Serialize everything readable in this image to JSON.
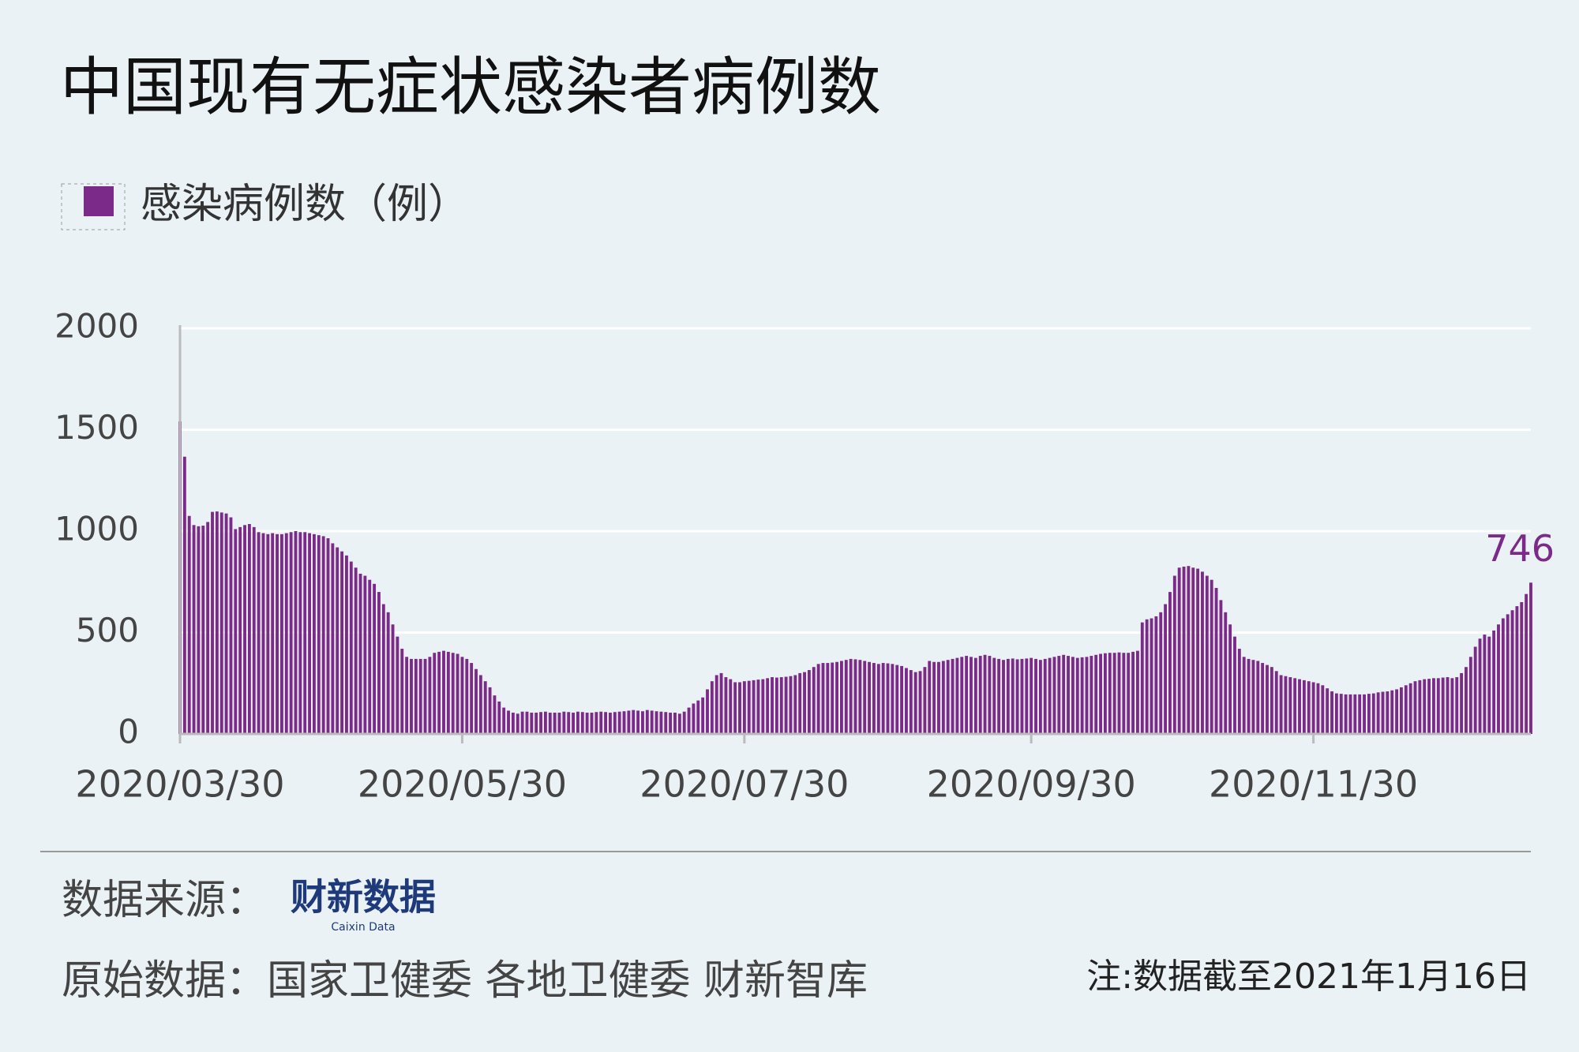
{
  "chart_data": {
    "type": "bar",
    "title": "中国现有无症状感染者病例数",
    "categories": [
      "2020/03/30",
      null,
      null,
      null,
      null,
      null,
      null,
      null,
      null,
      null,
      null,
      null,
      null,
      null,
      null,
      null,
      null,
      null,
      null,
      null,
      null,
      null,
      null,
      null,
      null,
      null,
      null,
      null,
      null,
      null,
      null,
      null,
      null,
      null,
      null,
      null,
      null,
      null,
      null,
      null,
      null,
      null,
      null,
      null,
      null,
      null,
      null,
      null,
      null,
      null,
      null,
      null,
      null,
      null,
      null,
      null,
      null,
      null,
      null,
      null,
      null,
      "2020/05/30",
      null,
      null,
      null,
      null,
      null,
      null,
      null,
      null,
      null,
      null,
      null,
      null,
      null,
      null,
      null,
      null,
      null,
      null,
      null,
      null,
      null,
      null,
      null,
      null,
      null,
      null,
      null,
      null,
      null,
      null,
      null,
      null,
      null,
      null,
      null,
      null,
      null,
      null,
      null,
      null,
      null,
      null,
      null,
      null,
      null,
      null,
      null,
      null,
      null,
      null,
      null,
      null,
      null,
      null,
      null,
      null,
      null,
      null,
      null,
      null,
      "2020/07/30",
      null,
      null,
      null,
      null,
      null,
      null,
      null,
      null,
      null,
      null,
      null,
      null,
      null,
      null,
      null,
      null,
      null,
      null,
      null,
      null,
      null,
      null,
      null,
      null,
      null,
      null,
      null,
      null,
      null,
      null,
      null,
      null,
      null,
      null,
      null,
      null,
      null,
      null,
      null,
      null,
      null,
      null,
      null,
      null,
      null,
      null,
      null,
      null,
      null,
      null,
      null,
      null,
      null,
      null,
      null,
      null,
      null,
      null,
      null,
      null,
      null,
      "2020/09/30",
      null,
      null,
      null,
      null,
      null,
      null,
      null,
      null,
      null,
      null,
      null,
      null,
      null,
      null,
      null,
      null,
      null,
      null,
      null,
      null,
      null,
      null,
      null,
      null,
      null,
      null,
      null,
      null,
      null,
      null,
      null,
      null,
      null,
      null,
      null,
      null,
      null,
      null,
      null,
      null,
      null,
      null,
      null,
      null,
      null,
      null,
      null,
      null,
      null,
      null,
      null,
      null,
      null,
      null,
      null,
      null,
      null,
      null,
      null,
      null,
      "2020/11/30",
      null,
      null,
      null,
      null,
      null,
      null,
      null,
      null,
      null,
      null,
      null,
      null,
      null,
      null,
      null,
      null,
      null,
      null,
      null,
      null,
      null,
      null,
      null,
      null,
      null,
      null,
      null,
      null,
      null,
      null,
      null,
      null,
      null,
      null,
      null,
      null,
      null,
      null,
      null,
      null,
      null,
      null,
      null,
      null,
      null,
      null,
      null
    ],
    "series": [
      {
        "name": "感染病例数（例）",
        "color": "#7b2a8a",
        "values": [
          1541,
          1367,
          1075,
          1030,
          1024,
          1027,
          1045,
          1095,
          1097,
          1092,
          1087,
          1068,
          1010,
          1020,
          1030,
          1035,
          1020,
          995,
          990,
          985,
          990,
          985,
          985,
          990,
          995,
          1000,
          995,
          995,
          990,
          985,
          980,
          975,
          965,
          940,
          920,
          900,
          880,
          850,
          820,
          790,
          780,
          760,
          740,
          700,
          640,
          600,
          540,
          480,
          420,
          380,
          370,
          370,
          370,
          370,
          380,
          400,
          405,
          410,
          405,
          400,
          395,
          380,
          370,
          350,
          320,
          290,
          260,
          230,
          190,
          160,
          130,
          115,
          105,
          100,
          110,
          110,
          105,
          105,
          108,
          110,
          105,
          105,
          105,
          110,
          108,
          105,
          110,
          108,
          105,
          105,
          108,
          110,
          108,
          105,
          108,
          110,
          112,
          115,
          118,
          115,
          112,
          118,
          115,
          112,
          110,
          108,
          105,
          105,
          100,
          110,
          130,
          150,
          165,
          180,
          220,
          260,
          290,
          300,
          280,
          270,
          255,
          255,
          260,
          262,
          265,
          268,
          270,
          275,
          280,
          278,
          280,
          282,
          285,
          290,
          300,
          305,
          315,
          330,
          345,
          350,
          350,
          352,
          355,
          360,
          365,
          370,
          368,
          365,
          360,
          355,
          350,
          345,
          350,
          348,
          345,
          340,
          335,
          325,
          315,
          305,
          310,
          330,
          360,
          355,
          355,
          360,
          365,
          370,
          375,
          380,
          385,
          380,
          375,
          385,
          390,
          385,
          375,
          370,
          365,
          370,
          372,
          368,
          370,
          372,
          375,
          370,
          365,
          370,
          375,
          380,
          385,
          390,
          385,
          380,
          375,
          378,
          380,
          385,
          390,
          395,
          398,
          400,
          400,
          402,
          400,
          400,
          405,
          410,
          550,
          565,
          570,
          580,
          600,
          640,
          700,
          780,
          820,
          825,
          828,
          820,
          815,
          800,
          780,
          760,
          720,
          660,
          600,
          540,
          480,
          420,
          380,
          370,
          365,
          360,
          350,
          340,
          330,
          310,
          290,
          285,
          280,
          275,
          270,
          265,
          260,
          255,
          250,
          240,
          225,
          210,
          200,
          198,
          195,
          195,
          195,
          195,
          195,
          198,
          200,
          205,
          208,
          210,
          215,
          220,
          230,
          240,
          250,
          260,
          265,
          270,
          272,
          275,
          275,
          278,
          280,
          275,
          280,
          300,
          330,
          380,
          430,
          470,
          490,
          480,
          510,
          540,
          570,
          590,
          610,
          630,
          650,
          690,
          746
        ]
      }
    ],
    "ylim": [
      0,
      2000
    ],
    "yticks": [
      0,
      500,
      1000,
      1500,
      2000
    ],
    "grid": true
  },
  "footer": {
    "source_label": "数据来源：",
    "logo": "财新数据",
    "logo_sub": "Caixin Data",
    "raw_data": "原始数据：国家卫健委  各地卫健委  财新智库",
    "note": "注:数据截至2021年1月16日"
  }
}
